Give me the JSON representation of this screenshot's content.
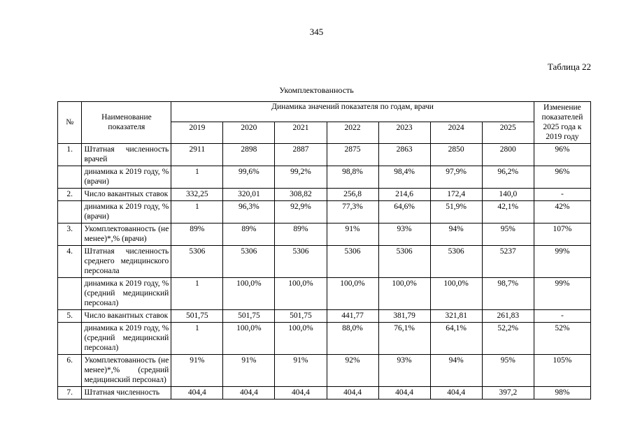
{
  "page": {
    "number": "345",
    "table_label": "Таблица 22",
    "table_title": "Укомплектованность"
  },
  "table": {
    "header": {
      "num": "№",
      "name": "Наименование показателя",
      "group": "Динамика значений показателя по годам, врачи",
      "years": [
        "2019",
        "2020",
        "2021",
        "2022",
        "2023",
        "2024",
        "2025"
      ],
      "change": "Изменение показателей 2025 года к 2019 году"
    },
    "rows": [
      {
        "num": "1.",
        "name": "Штатная численность врачей",
        "values": [
          "2911",
          "2898",
          "2887",
          "2875",
          "2863",
          "2850",
          "2800"
        ],
        "change": "96%"
      },
      {
        "num": "",
        "name": "динамика к 2019 году, % (врачи)",
        "values": [
          "1",
          "99,6%",
          "99,2%",
          "98,8%",
          "98,4%",
          "97,9%",
          "96,2%"
        ],
        "change": "96%"
      },
      {
        "num": "2.",
        "name": "Число вакантных ставок",
        "values": [
          "332,25",
          "320,01",
          "308,82",
          "256,8",
          "214,6",
          "172,4",
          "140,0"
        ],
        "change": "-"
      },
      {
        "num": "",
        "name": "динамика к 2019 году, % (врачи)",
        "values": [
          "1",
          "96,3%",
          "92,9%",
          "77,3%",
          "64,6%",
          "51,9%",
          "42,1%"
        ],
        "change": "42%"
      },
      {
        "num": "3.",
        "name": "Укомплектованность (не менее)*,% (врачи)",
        "values": [
          "89%",
          "89%",
          "89%",
          "91%",
          "93%",
          "94%",
          "95%"
        ],
        "change": "107%"
      },
      {
        "num": "4.",
        "name": "Штатная численность среднего медицинского персонала",
        "values": [
          "5306",
          "5306",
          "5306",
          "5306",
          "5306",
          "5306",
          "5237"
        ],
        "change": "99%"
      },
      {
        "num": "",
        "name": "динамика к 2019 году, % (средний медицинский персонал)",
        "values": [
          "1",
          "100,0%",
          "100,0%",
          "100,0%",
          "100,0%",
          "100,0%",
          "98,7%"
        ],
        "change": "99%"
      },
      {
        "num": "5.",
        "name": "Число вакантных ставок",
        "values": [
          "501,75",
          "501,75",
          "501,75",
          "441,77",
          "381,79",
          "321,81",
          "261,83"
        ],
        "change": "-"
      },
      {
        "num": "",
        "name": "динамика к 2019 году, % (средний медицинский персонал)",
        "values": [
          "1",
          "100,0%",
          "100,0%",
          "88,0%",
          "76,1%",
          "64,1%",
          "52,2%"
        ],
        "change": "52%"
      },
      {
        "num": "6.",
        "name": "Укомплектованность (не менее)*,% (средний медицинский персонал)",
        "values": [
          "91%",
          "91%",
          "91%",
          "92%",
          "93%",
          "94%",
          "95%"
        ],
        "change": "105%"
      },
      {
        "num": "7.",
        "name": "Штатная численность",
        "values": [
          "404,4",
          "404,4",
          "404,4",
          "404,4",
          "404,4",
          "404,4",
          "397,2"
        ],
        "change": "98%"
      }
    ]
  }
}
